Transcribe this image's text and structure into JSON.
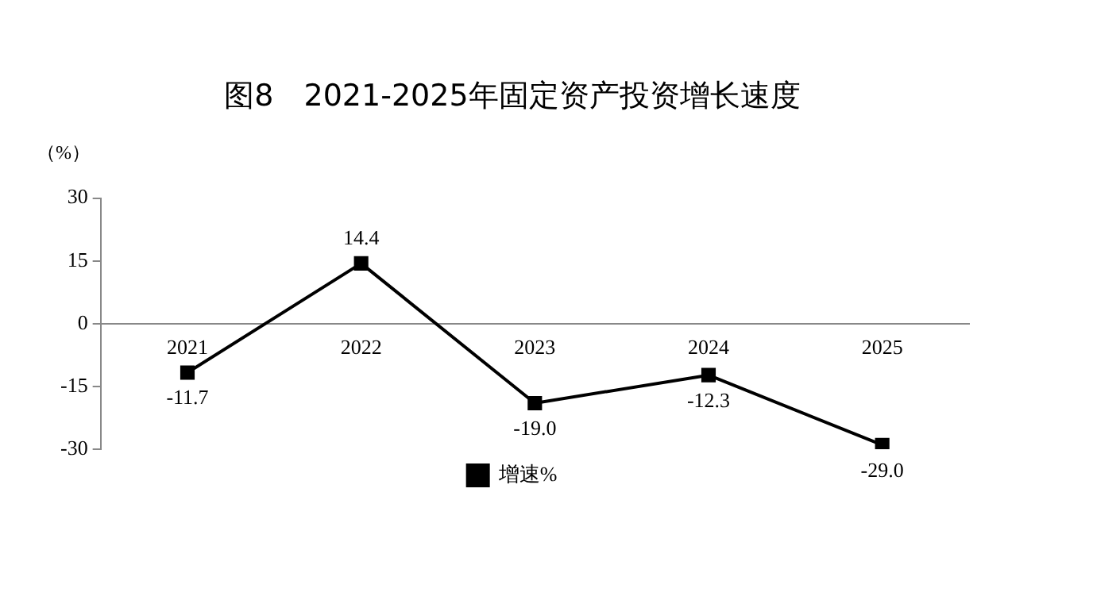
{
  "chart_data": {
    "type": "line",
    "title": "图8　2021-2025年固定资产投资增长速度",
    "ylabel": "（%）",
    "categories": [
      "2021",
      "2022",
      "2023",
      "2024",
      "2025"
    ],
    "series": [
      {
        "name": "增速%",
        "color": "#000000",
        "values": [
          -11.7,
          14.4,
          -19.0,
          -12.3,
          -29.0
        ],
        "value_labels": [
          "-11.7",
          "14.4",
          "-19.0",
          "-12.3",
          "-29.0"
        ]
      }
    ],
    "ylim": [
      -30,
      30
    ],
    "yticks": [
      -30,
      -15,
      0,
      15,
      30
    ],
    "grid": false,
    "legend": "bottom",
    "marker": "square",
    "line_style": "solid"
  }
}
